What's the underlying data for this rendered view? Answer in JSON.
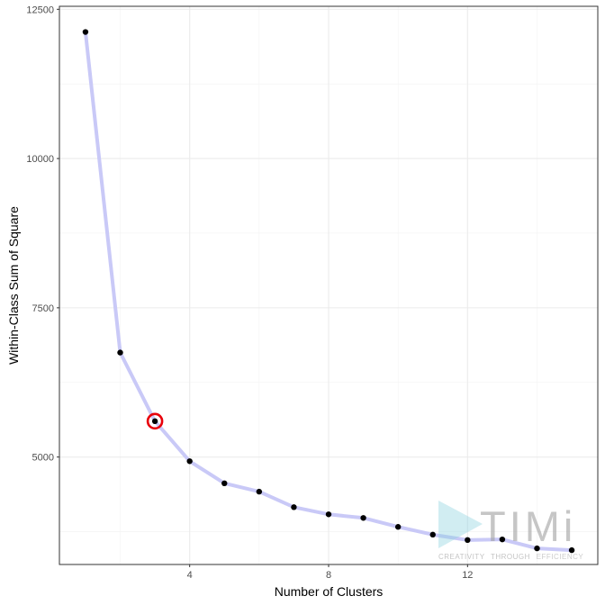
{
  "chart_data": {
    "type": "line",
    "xlabel": "Number of Clusters",
    "ylabel": "Within-Class Sum of Square",
    "xlim": [
      0.25,
      15.75
    ],
    "ylim": [
      3200,
      12550
    ],
    "x_ticks": [
      4,
      8,
      12
    ],
    "y_ticks": [
      5000,
      7500,
      10000,
      12500
    ],
    "grid": true,
    "series": [
      {
        "x": [
          1,
          2,
          3,
          4,
          5,
          6,
          7,
          8,
          9,
          10,
          11,
          12,
          13,
          14,
          15
        ],
        "y": [
          12120,
          6750,
          5600,
          4930,
          4560,
          4420,
          4160,
          4040,
          3980,
          3830,
          3700,
          3610,
          3620,
          3470,
          3440
        ]
      }
    ],
    "highlight": {
      "x": 3,
      "y": 5600
    },
    "line_color": "#c9c9f7",
    "point_color": "#000000",
    "highlight_color": "#e8000b"
  },
  "watermark": {
    "logo_text": "TIMi",
    "tagline_parts": [
      "CREATIVITY",
      "THROUGH",
      "EFFICIENCY"
    ]
  }
}
